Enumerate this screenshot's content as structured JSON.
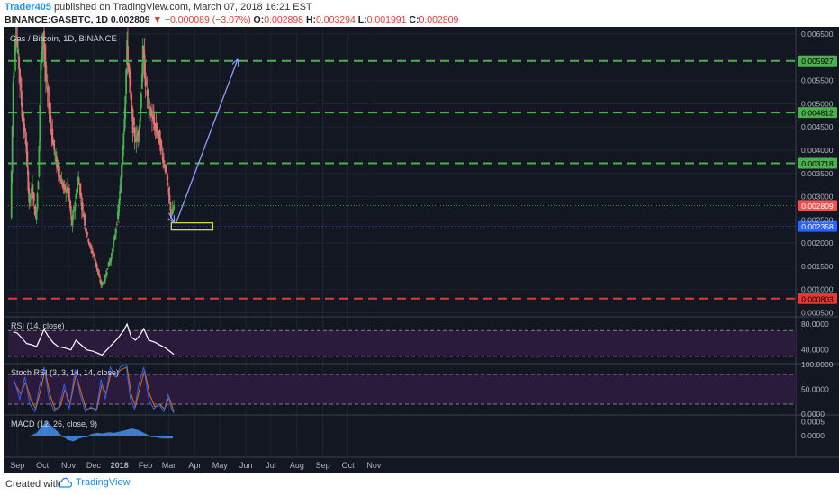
{
  "header": {
    "user": "Trader405",
    "published_text": "published on TradingView.com, March 07, 2018 16:21 EST",
    "symbol_line": "BINANCE:GASBTC, 1D",
    "last": "0.002809",
    "change": "▼ −0.000089 (−3.07%)",
    "o_label": "O:",
    "o_value": "0.002898",
    "h_label": "H:",
    "h_value": "0.003294",
    "l_label": "L:",
    "l_value": "0.001991",
    "c_label": "C:",
    "c_value": "0.002809"
  },
  "footer": {
    "created_with": "Created with",
    "brand": "TradingView"
  },
  "colors": {
    "background": "#131722",
    "up": "#4caf50",
    "down": "#e57373",
    "green_level": "#4caf50",
    "red_level": "#e53935",
    "arrow": "#8c9eff",
    "box": "#cddc39",
    "rsi_line": "#ffffff",
    "panel_fill": "#2a1b3d",
    "macd_hist": "#3f7fd6",
    "k_line": "#2962ff",
    "d_line": "#ef6c00"
  },
  "chart_data": {
    "type": "candlestick",
    "title": "Gas / Bitcoin, 1D, BINANCE",
    "x_ticks": [
      "Sep",
      "Oct",
      "Nov",
      "Dec",
      "2018",
      "Feb",
      "Mar",
      "Apr",
      "May",
      "Jun",
      "Jul",
      "Aug",
      "Sep",
      "Oct",
      "Nov"
    ],
    "ylim": [
      0.00045,
      0.0066
    ],
    "y_ticks": [
      "0.006500",
      "0.005500",
      "0.005000",
      "0.004500",
      "0.004000",
      "0.003500",
      "0.003000",
      "0.002500",
      "0.002000",
      "0.001500",
      "0.001000",
      "0.000500"
    ],
    "levels": [
      {
        "value": 0.005927,
        "label": "0.005927",
        "color": "green"
      },
      {
        "value": 0.004812,
        "label": "0.004812",
        "color": "green"
      },
      {
        "value": 0.003718,
        "label": "0.003718",
        "color": "green"
      },
      {
        "value": 0.000803,
        "label": "0.000803",
        "color": "red"
      }
    ],
    "last_price": {
      "value": 0.002809,
      "label": "0.002809"
    },
    "target_box": {
      "value": 0.002358,
      "label": "0.002358"
    },
    "close_path": [
      {
        "date": "2017-08-24",
        "close": 0.00255
      },
      {
        "date": "2017-08-27",
        "close": 0.0055
      },
      {
        "date": "2017-08-30",
        "close": 0.0066
      },
      {
        "date": "2017-09-03",
        "close": 0.0058
      },
      {
        "date": "2017-09-07",
        "close": 0.0047
      },
      {
        "date": "2017-09-11",
        "close": 0.0042
      },
      {
        "date": "2017-09-15",
        "close": 0.0029
      },
      {
        "date": "2017-09-19",
        "close": 0.0032
      },
      {
        "date": "2017-09-23",
        "close": 0.0025
      },
      {
        "date": "2017-09-26",
        "close": 0.0034
      },
      {
        "date": "2017-09-29",
        "close": 0.0058
      },
      {
        "date": "2017-10-02",
        "close": 0.0066
      },
      {
        "date": "2017-10-05",
        "close": 0.0055
      },
      {
        "date": "2017-10-09",
        "close": 0.0049
      },
      {
        "date": "2017-10-14",
        "close": 0.0041
      },
      {
        "date": "2017-10-20",
        "close": 0.0035
      },
      {
        "date": "2017-10-26",
        "close": 0.0032
      },
      {
        "date": "2017-11-01",
        "close": 0.0031
      },
      {
        "date": "2017-11-05",
        "close": 0.0024
      },
      {
        "date": "2017-11-09",
        "close": 0.0029
      },
      {
        "date": "2017-11-13",
        "close": 0.0034
      },
      {
        "date": "2017-11-17",
        "close": 0.0028
      },
      {
        "date": "2017-11-22",
        "close": 0.0023
      },
      {
        "date": "2017-11-27",
        "close": 0.0019
      },
      {
        "date": "2017-12-02",
        "close": 0.0017
      },
      {
        "date": "2017-12-07",
        "close": 0.0013
      },
      {
        "date": "2017-12-10",
        "close": 0.0011
      },
      {
        "date": "2017-12-14",
        "close": 0.0012
      },
      {
        "date": "2017-12-18",
        "close": 0.0015
      },
      {
        "date": "2017-12-22",
        "close": 0.0017
      },
      {
        "date": "2017-12-26",
        "close": 0.0021
      },
      {
        "date": "2017-12-30",
        "close": 0.0026
      },
      {
        "date": "2018-01-03",
        "close": 0.0034
      },
      {
        "date": "2018-01-07",
        "close": 0.0048
      },
      {
        "date": "2018-01-10",
        "close": 0.0062
      },
      {
        "date": "2018-01-13",
        "close": 0.0055
      },
      {
        "date": "2018-01-17",
        "close": 0.0045
      },
      {
        "date": "2018-01-21",
        "close": 0.0042
      },
      {
        "date": "2018-01-25",
        "close": 0.0046
      },
      {
        "date": "2018-01-29",
        "close": 0.0061
      },
      {
        "date": "2018-02-02",
        "close": 0.0053
      },
      {
        "date": "2018-02-07",
        "close": 0.0048
      },
      {
        "date": "2018-02-12",
        "close": 0.0045
      },
      {
        "date": "2018-02-17",
        "close": 0.0043
      },
      {
        "date": "2018-02-21",
        "close": 0.0039
      },
      {
        "date": "2018-02-25",
        "close": 0.0036
      },
      {
        "date": "2018-03-01",
        "close": 0.003
      },
      {
        "date": "2018-03-04",
        "close": 0.0026
      },
      {
        "date": "2018-03-07",
        "close": 0.0028
      }
    ],
    "projection_arrows": [
      {
        "from": {
          "date": "2018-03-01",
          "value": 0.00265
        },
        "to": {
          "date": "2018-03-07",
          "value": 0.00245
        }
      },
      {
        "from": {
          "date": "2018-03-10",
          "value": 0.00245
        },
        "to": {
          "date": "2018-05-22",
          "value": 0.00595
        }
      }
    ],
    "rsi": {
      "label": "RSI (14, close)",
      "ylim": [
        20,
        90
      ],
      "y_ticks": [
        "80.0000",
        "40.0000"
      ],
      "bands": [
        70,
        30
      ],
      "points": [
        {
          "date": "2017-08-27",
          "value": 68
        },
        {
          "date": "2017-09-01",
          "value": 66
        },
        {
          "date": "2017-09-06",
          "value": 59
        },
        {
          "date": "2017-09-12",
          "value": 50
        },
        {
          "date": "2017-09-18",
          "value": 48
        },
        {
          "date": "2017-09-24",
          "value": 45
        },
        {
          "date": "2017-09-29",
          "value": 60
        },
        {
          "date": "2017-10-03",
          "value": 72
        },
        {
          "date": "2017-10-08",
          "value": 61
        },
        {
          "date": "2017-10-14",
          "value": 51
        },
        {
          "date": "2017-10-20",
          "value": 45
        },
        {
          "date": "2017-10-28",
          "value": 43
        },
        {
          "date": "2017-11-04",
          "value": 40
        },
        {
          "date": "2017-11-10",
          "value": 55
        },
        {
          "date": "2017-11-16",
          "value": 48
        },
        {
          "date": "2017-11-23",
          "value": 40
        },
        {
          "date": "2017-11-30",
          "value": 38
        },
        {
          "date": "2017-12-06",
          "value": 35
        },
        {
          "date": "2017-12-11",
          "value": 32
        },
        {
          "date": "2017-12-17",
          "value": 40
        },
        {
          "date": "2017-12-24",
          "value": 50
        },
        {
          "date": "2017-12-30",
          "value": 58
        },
        {
          "date": "2018-01-06",
          "value": 70
        },
        {
          "date": "2018-01-10",
          "value": 80
        },
        {
          "date": "2018-01-15",
          "value": 60
        },
        {
          "date": "2018-01-20",
          "value": 55
        },
        {
          "date": "2018-01-25",
          "value": 62
        },
        {
          "date": "2018-01-30",
          "value": 73
        },
        {
          "date": "2018-02-05",
          "value": 55
        },
        {
          "date": "2018-02-12",
          "value": 52
        },
        {
          "date": "2018-02-19",
          "value": 47
        },
        {
          "date": "2018-02-25",
          "value": 43
        },
        {
          "date": "2018-03-02",
          "value": 38
        },
        {
          "date": "2018-03-07",
          "value": 33
        }
      ]
    },
    "stoch_rsi": {
      "label": "Stoch RSI (3, 3, 14, 14, close)",
      "ylim": [
        0,
        100
      ],
      "y_ticks": [
        "100.0000",
        "50.0000",
        "0.0000"
      ],
      "bands": [
        80,
        20
      ],
      "k": [
        {
          "date": "2017-08-28",
          "value": 70
        },
        {
          "date": "2017-09-04",
          "value": 30
        },
        {
          "date": "2017-09-10",
          "value": 75
        },
        {
          "date": "2017-09-16",
          "value": 20
        },
        {
          "date": "2017-09-22",
          "value": 5
        },
        {
          "date": "2017-09-28",
          "value": 60
        },
        {
          "date": "2017-10-03",
          "value": 95
        },
        {
          "date": "2017-10-09",
          "value": 30
        },
        {
          "date": "2017-10-15",
          "value": 5
        },
        {
          "date": "2017-10-21",
          "value": 15
        },
        {
          "date": "2017-10-27",
          "value": 60
        },
        {
          "date": "2017-11-02",
          "value": 10
        },
        {
          "date": "2017-11-09",
          "value": 90
        },
        {
          "date": "2017-11-15",
          "value": 40
        },
        {
          "date": "2017-11-21",
          "value": 5
        },
        {
          "date": "2017-11-28",
          "value": 15
        },
        {
          "date": "2017-12-04",
          "value": 5
        },
        {
          "date": "2017-12-10",
          "value": 70
        },
        {
          "date": "2017-12-15",
          "value": 30
        },
        {
          "date": "2017-12-21",
          "value": 95
        },
        {
          "date": "2017-12-27",
          "value": 75
        },
        {
          "date": "2018-01-02",
          "value": 95
        },
        {
          "date": "2018-01-09",
          "value": 100
        },
        {
          "date": "2018-01-14",
          "value": 30
        },
        {
          "date": "2018-01-19",
          "value": 10
        },
        {
          "date": "2018-01-24",
          "value": 60
        },
        {
          "date": "2018-01-30",
          "value": 95
        },
        {
          "date": "2018-02-05",
          "value": 30
        },
        {
          "date": "2018-02-11",
          "value": 10
        },
        {
          "date": "2018-02-17",
          "value": 20
        },
        {
          "date": "2018-02-23",
          "value": 5
        },
        {
          "date": "2018-02-28",
          "value": 40
        },
        {
          "date": "2018-03-04",
          "value": 10
        },
        {
          "date": "2018-03-07",
          "value": 2
        }
      ],
      "d": [
        {
          "date": "2017-08-28",
          "value": 65
        },
        {
          "date": "2017-09-05",
          "value": 40
        },
        {
          "date": "2017-09-11",
          "value": 65
        },
        {
          "date": "2017-09-17",
          "value": 30
        },
        {
          "date": "2017-09-23",
          "value": 10
        },
        {
          "date": "2017-09-29",
          "value": 50
        },
        {
          "date": "2017-10-04",
          "value": 88
        },
        {
          "date": "2017-10-10",
          "value": 40
        },
        {
          "date": "2017-10-16",
          "value": 10
        },
        {
          "date": "2017-10-22",
          "value": 15
        },
        {
          "date": "2017-10-28",
          "value": 50
        },
        {
          "date": "2017-11-03",
          "value": 20
        },
        {
          "date": "2017-11-10",
          "value": 80
        },
        {
          "date": "2017-11-16",
          "value": 45
        },
        {
          "date": "2017-11-22",
          "value": 10
        },
        {
          "date": "2017-11-29",
          "value": 12
        },
        {
          "date": "2017-12-05",
          "value": 10
        },
        {
          "date": "2017-12-11",
          "value": 60
        },
        {
          "date": "2017-12-16",
          "value": 40
        },
        {
          "date": "2017-12-22",
          "value": 85
        },
        {
          "date": "2017-12-28",
          "value": 80
        },
        {
          "date": "2018-01-03",
          "value": 90
        },
        {
          "date": "2018-01-10",
          "value": 95
        },
        {
          "date": "2018-01-15",
          "value": 40
        },
        {
          "date": "2018-01-20",
          "value": 15
        },
        {
          "date": "2018-01-25",
          "value": 50
        },
        {
          "date": "2018-01-31",
          "value": 88
        },
        {
          "date": "2018-02-06",
          "value": 40
        },
        {
          "date": "2018-02-12",
          "value": 15
        },
        {
          "date": "2018-02-18",
          "value": 20
        },
        {
          "date": "2018-02-24",
          "value": 10
        },
        {
          "date": "2018-03-01",
          "value": 35
        },
        {
          "date": "2018-03-05",
          "value": 15
        },
        {
          "date": "2018-03-07",
          "value": 5
        }
      ]
    },
    "macd": {
      "label": "MACD (12, 26, close, 9)",
      "ylim": [
        -0.0007,
        0.0007
      ],
      "y_ticks": [
        "0.0005",
        "0.0000"
      ],
      "histogram": [
        {
          "date": "2017-09-17",
          "value": 0.0
        },
        {
          "date": "2017-09-24",
          "value": 0.0001
        },
        {
          "date": "2017-10-01",
          "value": 0.00035
        },
        {
          "date": "2017-10-05",
          "value": 0.0005
        },
        {
          "date": "2017-10-10",
          "value": 0.0004
        },
        {
          "date": "2017-10-17",
          "value": 0.0002
        },
        {
          "date": "2017-10-24",
          "value": 0.0
        },
        {
          "date": "2017-10-31",
          "value": -0.00015
        },
        {
          "date": "2017-11-07",
          "value": -0.0002
        },
        {
          "date": "2017-11-14",
          "value": -0.0001
        },
        {
          "date": "2017-11-21",
          "value": -5e-05
        },
        {
          "date": "2017-11-28",
          "value": 5e-05
        },
        {
          "date": "2017-12-05",
          "value": 0.0001
        },
        {
          "date": "2017-12-12",
          "value": 8e-05
        },
        {
          "date": "2017-12-19",
          "value": 0.00012
        },
        {
          "date": "2017-12-26",
          "value": 0.0001
        },
        {
          "date": "2018-01-02",
          "value": 0.00015
        },
        {
          "date": "2018-01-09",
          "value": 0.0002
        },
        {
          "date": "2018-01-16",
          "value": 0.00025
        },
        {
          "date": "2018-01-23",
          "value": 0.0002
        },
        {
          "date": "2018-01-30",
          "value": 0.0001
        },
        {
          "date": "2018-02-06",
          "value": 0.0
        },
        {
          "date": "2018-02-13",
          "value": -5e-05
        },
        {
          "date": "2018-02-20",
          "value": -0.0001
        },
        {
          "date": "2018-02-27",
          "value": -0.0001
        },
        {
          "date": "2018-03-06",
          "value": -0.0001
        }
      ]
    }
  }
}
